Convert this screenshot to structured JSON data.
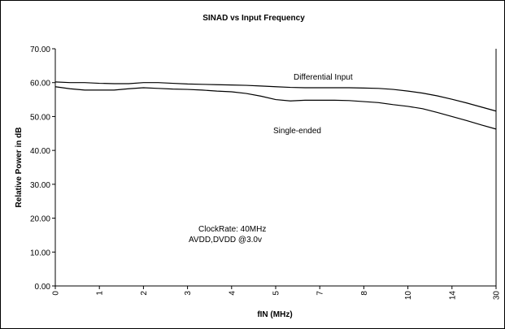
{
  "chart_data": {
    "type": "line",
    "title": "SINAD vs Input Frequency",
    "xlabel": "fIN (MHz)",
    "ylabel": "Relative Power in dB",
    "ylim": [
      0,
      70
    ],
    "yticks": [
      "0.00",
      "10.00",
      "20.00",
      "30.00",
      "40.00",
      "50.00",
      "60.00",
      "70.00"
    ],
    "categories": [
      "0",
      "1",
      "2",
      "3",
      "4",
      "5",
      "7",
      "8",
      "10",
      "14",
      "30"
    ],
    "grid": false,
    "series": [
      {
        "name": "Differential Input",
        "x": [
          0,
          0.5,
          1,
          1.5,
          2,
          2.5,
          3,
          3.5,
          4,
          4.5,
          5,
          5.5,
          6,
          6.5,
          7,
          7.5,
          8,
          8.5,
          9,
          9.5,
          10,
          10.5,
          11,
          11.5,
          12,
          12.5,
          13,
          13.5,
          14,
          14.5,
          15
        ],
        "values": [
          60.2,
          60.0,
          60.0,
          59.8,
          59.7,
          59.7,
          60.0,
          60.0,
          59.8,
          59.6,
          59.5,
          59.4,
          59.3,
          59.2,
          59.0,
          58.8,
          58.6,
          58.5,
          58.5,
          58.5,
          58.5,
          58.4,
          58.3,
          58.0,
          57.5,
          56.9,
          56.1,
          55.1,
          54.0,
          52.8,
          51.6
        ],
        "color": "#000000"
      },
      {
        "name": "Single-ended",
        "x": [
          0,
          0.5,
          1,
          1.5,
          2,
          2.5,
          3,
          3.5,
          4,
          4.5,
          5,
          5.5,
          6,
          6.5,
          7,
          7.5,
          8,
          8.5,
          9,
          9.5,
          10,
          10.5,
          11,
          11.5,
          12,
          12.5,
          13,
          13.5,
          14,
          14.5,
          15
        ],
        "values": [
          58.8,
          58.2,
          57.8,
          57.8,
          57.8,
          58.2,
          58.5,
          58.3,
          58.1,
          58.0,
          57.8,
          57.5,
          57.3,
          56.8,
          56.0,
          55.0,
          54.6,
          54.8,
          54.8,
          54.8,
          54.7,
          54.4,
          54.1,
          53.5,
          53.0,
          52.3,
          51.2,
          50.0,
          48.8,
          47.5,
          46.3
        ],
        "color": "#000000"
      }
    ],
    "annotations": [
      "Differential Input",
      "Single-ended",
      "ClockRate: 40MHz",
      "AVDD,DVDD @3.0v"
    ]
  }
}
